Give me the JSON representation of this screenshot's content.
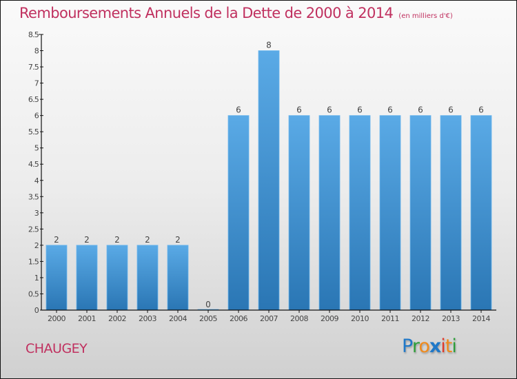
{
  "header": {
    "title": "Remboursements Annuels de la Dette de 2000 à 2014",
    "subtitle": "(en milliers d'€)"
  },
  "commune": "CHAUGEY",
  "logo": {
    "letters": [
      {
        "char": "P",
        "color": "#1f78c8"
      },
      {
        "char": "r",
        "color": "#2e9e3a"
      },
      {
        "char": "o",
        "color": "#f08a1c"
      },
      {
        "char": "x",
        "color": "#1f78c8"
      },
      {
        "char": "i",
        "color": "#e03a2a"
      },
      {
        "char": "t",
        "color": "#f08a1c"
      },
      {
        "char": "i",
        "color": "#2e9e3a"
      }
    ]
  },
  "colors": {
    "bar_top": "#5aaae6",
    "bar_bottom": "#2a76b4",
    "title": "#c0305f",
    "axis": "#111111",
    "tick_label": "#444444"
  },
  "chart_data": {
    "type": "bar",
    "title": "Remboursements Annuels de la Dette de 2000 à 2014",
    "subtitle": "(en milliers d'€)",
    "xlabel": "",
    "ylabel": "",
    "categories": [
      "2000",
      "2001",
      "2002",
      "2003",
      "2004",
      "2005",
      "2006",
      "2007",
      "2008",
      "2009",
      "2010",
      "2011",
      "2012",
      "2013",
      "2014"
    ],
    "values": [
      2,
      2,
      2,
      2,
      2,
      0,
      6,
      8,
      6,
      6,
      6,
      6,
      6,
      6,
      6
    ],
    "data_labels": [
      "2",
      "2",
      "2",
      "2",
      "2",
      "0",
      "6",
      "8",
      "6",
      "6",
      "6",
      "6",
      "6",
      "6",
      "6"
    ],
    "ylim": [
      0,
      8.5
    ],
    "yticks": [
      0,
      0.5,
      1,
      1.5,
      2,
      2.5,
      3,
      3.5,
      4,
      4.5,
      5,
      5.5,
      6,
      6.5,
      7,
      7.5,
      8,
      8.5
    ],
    "ytick_labels": [
      "0",
      "0.5",
      "1",
      "1.5",
      "2",
      "2.5",
      "3",
      "3.5",
      "4",
      "4.5",
      "5",
      "5.5",
      "6",
      "6.5",
      "7",
      "7.5",
      "8",
      "8.5"
    ],
    "grid": false,
    "legend": "none"
  }
}
